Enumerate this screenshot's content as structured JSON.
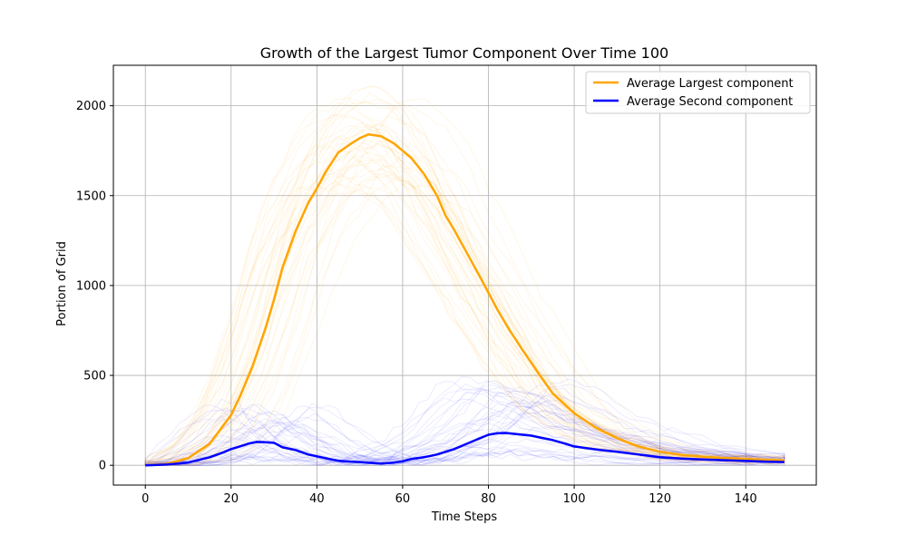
{
  "chart_data": {
    "type": "line",
    "title": "Growth of the Largest Tumor Component Over Time 100",
    "xlabel": "Time Steps",
    "ylabel": "Portion of Grid",
    "xlim": [
      -7.45,
      156.45
    ],
    "ylim": [
      -110,
      2225
    ],
    "xticks": [
      0,
      20,
      40,
      60,
      80,
      100,
      120,
      140
    ],
    "yticks": [
      0,
      500,
      1000,
      1500,
      2000
    ],
    "grid": true,
    "legend_position": "top-right",
    "series": [
      {
        "name": "Average Largest component",
        "color": "#FFA500",
        "x": [
          0,
          5,
          10,
          15,
          20,
          22,
          25,
          28,
          30,
          32,
          35,
          38,
          40,
          42,
          45,
          48,
          50,
          52,
          55,
          58,
          60,
          62,
          65,
          68,
          70,
          72,
          75,
          78,
          80,
          82,
          85,
          88,
          90,
          92,
          95,
          100,
          105,
          110,
          115,
          120,
          125,
          130,
          135,
          140,
          145,
          149
        ],
        "y": [
          0,
          8,
          40,
          120,
          280,
          380,
          550,
          760,
          920,
          1100,
          1300,
          1460,
          1540,
          1630,
          1740,
          1790,
          1820,
          1840,
          1830,
          1790,
          1750,
          1710,
          1620,
          1500,
          1390,
          1310,
          1180,
          1050,
          960,
          870,
          750,
          640,
          570,
          500,
          400,
          290,
          210,
          150,
          105,
          75,
          58,
          48,
          40,
          35,
          30,
          27
        ]
      },
      {
        "name": "Average Second component",
        "color": "#0000FF",
        "x": [
          0,
          5,
          10,
          15,
          18,
          20,
          22,
          24,
          26,
          28,
          30,
          32,
          35,
          38,
          40,
          42,
          45,
          48,
          50,
          52,
          55,
          58,
          60,
          62,
          65,
          68,
          70,
          72,
          74,
          76,
          78,
          80,
          82,
          84,
          86,
          88,
          90,
          92,
          95,
          98,
          100,
          103,
          106,
          108,
          110,
          115,
          120,
          125,
          130,
          135,
          140,
          145,
          149
        ],
        "y": [
          0,
          4,
          15,
          45,
          70,
          90,
          105,
          120,
          130,
          128,
          125,
          100,
          85,
          60,
          50,
          40,
          25,
          20,
          18,
          14,
          10,
          15,
          22,
          35,
          45,
          60,
          75,
          90,
          110,
          130,
          150,
          170,
          178,
          180,
          175,
          170,
          165,
          155,
          140,
          120,
          105,
          95,
          85,
          80,
          75,
          60,
          45,
          38,
          32,
          28,
          24,
          20,
          18
        ]
      }
    ],
    "annotations": [
      "Many faint individual run curves (light orange for largest component, light blue for second component) are drawn behind the averages"
    ]
  }
}
